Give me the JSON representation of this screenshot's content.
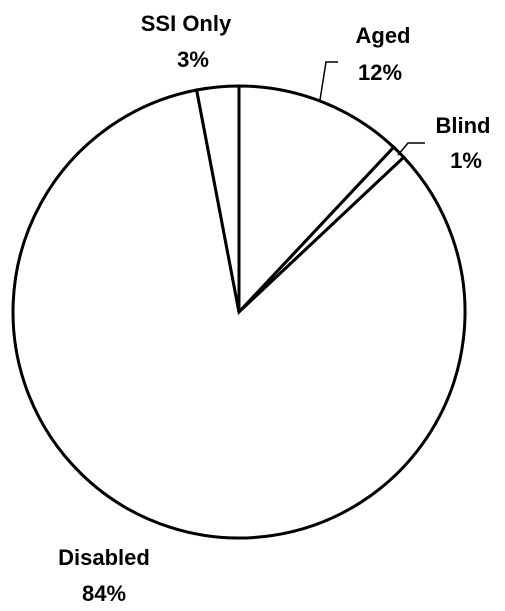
{
  "chart_data": {
    "type": "pie",
    "title": "",
    "legend": "none",
    "start_angle_deg": 0,
    "direction": "clockwise",
    "slices": [
      {
        "name": "Aged",
        "value": 12,
        "label": "Aged",
        "pct_label": "12%"
      },
      {
        "name": "Blind",
        "value": 1,
        "label": "Blind",
        "pct_label": "1%"
      },
      {
        "name": "Disabled",
        "value": 84,
        "label": "Disabled",
        "pct_label": "84%"
      },
      {
        "name": "SSI Only",
        "value": 3,
        "label": "SSI Only",
        "pct_label": "3%"
      }
    ],
    "slice_fill": "#ffffff",
    "slice_stroke": "#000000"
  }
}
